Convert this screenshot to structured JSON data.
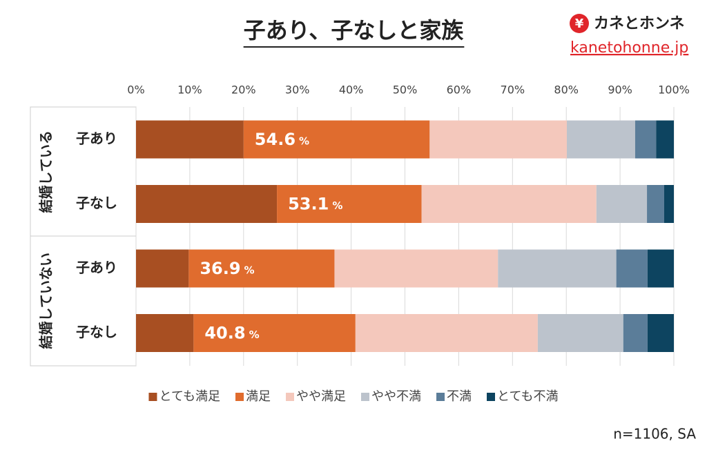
{
  "chart_data": {
    "type": "stacked-bar-horizontal",
    "title": "子あり、子なしと家族",
    "brand": {
      "name": "カネとホンネ",
      "symbol": "¥",
      "url": "kanetohonne.jp"
    },
    "note": "n=1106, SA",
    "groups": [
      "結婚している",
      "結婚していない"
    ],
    "categories": [
      "子あり",
      "子なし",
      "子あり",
      "子なし"
    ],
    "series": [
      {
        "name": "とても満足",
        "color": "#a84f22",
        "values": [
          20.0,
          26.2,
          9.8,
          10.7
        ]
      },
      {
        "name": "満足",
        "color": "#e06c2e",
        "values": [
          34.6,
          26.9,
          27.1,
          30.1
        ]
      },
      {
        "name": "やや満足",
        "color": "#f4c8bc",
        "values": [
          25.5,
          32.5,
          30.4,
          33.9
        ]
      },
      {
        "name": "やや不満",
        "color": "#bcc3cc",
        "values": [
          12.7,
          9.4,
          22.0,
          15.9
        ]
      },
      {
        "name": "不満",
        "color": "#5b7d99",
        "values": [
          3.9,
          3.2,
          5.8,
          4.5
        ]
      },
      {
        "name": "とても不満",
        "color": "#0d4460",
        "values": [
          3.3,
          1.8,
          4.9,
          4.9
        ]
      }
    ],
    "satisfied_totals": [
      54.6,
      53.1,
      36.9,
      40.8
    ],
    "total_unit": "%",
    "xlim": [
      0,
      100
    ],
    "xticks": [
      {
        "value": 0,
        "label": "0%"
      },
      {
        "value": 10,
        "label": "10%"
      },
      {
        "value": 20,
        "label": "20%"
      },
      {
        "value": 30,
        "label": "30%"
      },
      {
        "value": 40,
        "label": "40%"
      },
      {
        "value": 50,
        "label": "50%"
      },
      {
        "value": 60,
        "label": "60%"
      },
      {
        "value": 70,
        "label": "70%"
      },
      {
        "value": 80,
        "label": "80%"
      },
      {
        "value": 90,
        "label": "90%"
      },
      {
        "value": 100,
        "label": "100%"
      }
    ],
    "grid": true
  }
}
